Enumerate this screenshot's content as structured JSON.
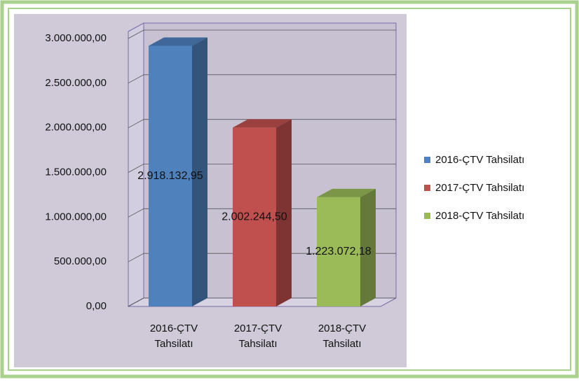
{
  "chart_data": {
    "type": "bar3d",
    "categories": [
      "2016-ÇTV Tahsilatı",
      "2017-ÇTV Tahsilatı",
      "2018-ÇTV Tahsilatı"
    ],
    "values": [
      2918132.95,
      2002244.5,
      1223072.18
    ],
    "value_labels": [
      "2.918.132,95",
      "2.002.244,50",
      "1.223.072,18"
    ],
    "colors": [
      "#4f81bd",
      "#c0504d",
      "#9bbb59"
    ],
    "ylim": [
      0,
      3000000
    ],
    "yticks": [
      {
        "value": 0,
        "label": "0,00"
      },
      {
        "value": 500000,
        "label": "500.000,00"
      },
      {
        "value": 1000000,
        "label": "1.000.000,00"
      },
      {
        "value": 1500000,
        "label": "1.500.000,00"
      },
      {
        "value": 2000000,
        "label": "2.000.000,00"
      },
      {
        "value": 2500000,
        "label": "2.500.000,00"
      },
      {
        "value": 3000000,
        "label": "3.000.000,00"
      }
    ],
    "grid": true,
    "legend": "right"
  }
}
